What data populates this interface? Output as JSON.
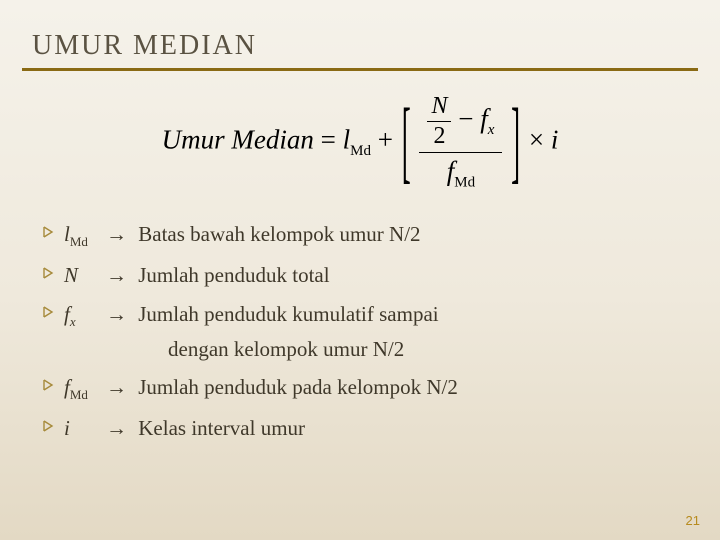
{
  "colors": {
    "rule": "#8a6a14",
    "title": "#5a5242",
    "body_text": "#3f382a",
    "pagenum": "#b78b1e",
    "bullet_stroke": "#a68a3a",
    "bg_top": "#f5f2ea",
    "bg_mid": "#efe9dc",
    "bg_bottom": "#e3d9c4"
  },
  "title": "UMUR MEDIAN",
  "formula": {
    "lhs": "Umur Median",
    "eq": "=",
    "term1_base": "l",
    "term1_sub": "Md",
    "plus": "+",
    "frac_top_left_num": "N",
    "frac_top_left_den": "2",
    "minus": "−",
    "fx_base": "f",
    "fx_sub": "x",
    "frac_bottom_base": "f",
    "frac_bottom_sub": "Md",
    "times": "×",
    "i": "i"
  },
  "defs": [
    {
      "sym_base": "l",
      "sym_sub": "Md",
      "sub_italic": false,
      "text": "Batas bawah kelompok umur N/2",
      "cont": ""
    },
    {
      "sym_base": "N",
      "sym_sub": "",
      "sub_italic": false,
      "text": "Jumlah penduduk total",
      "cont": ""
    },
    {
      "sym_base": "f",
      "sym_sub": "x",
      "sub_italic": true,
      "text": "Jumlah penduduk kumulatif sampai",
      "cont": "dengan kelompok umur N/2"
    },
    {
      "sym_base": "f",
      "sym_sub": "Md",
      "sub_italic": false,
      "text": "Jumlah penduduk pada kelompok N/2",
      "cont": ""
    },
    {
      "sym_base": "i",
      "sym_sub": "",
      "sub_italic": false,
      "text": "Kelas interval umur",
      "cont": ""
    }
  ],
  "arrow": "→",
  "pagenum": "21"
}
